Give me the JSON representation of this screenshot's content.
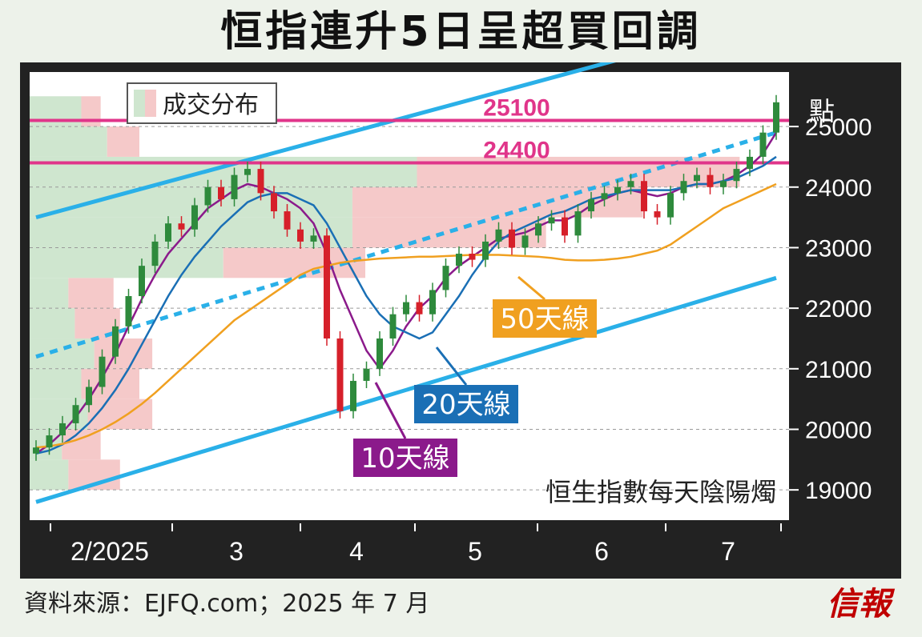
{
  "title": "恒指連升5日呈超買回調",
  "source": "資料來源：EJFQ.com；2025 年 7 月",
  "brand": "信報",
  "legend_label": "成交分布",
  "chart_caption": "恒生指數每天陰陽燭",
  "y_unit": "點",
  "colors": {
    "up": "#2e8a3c",
    "down": "#d6202a",
    "ma10": "#8b1a8b",
    "ma20": "#1a6fb5",
    "ma50": "#f0a020",
    "channel": "#2ab0e8",
    "resistance": "#e0358a",
    "vol_up": "#cfe6cf",
    "vol_down": "#f5c9c9"
  },
  "labels": {
    "ma10": "10天線",
    "ma20": "20天線",
    "ma50": "50天線",
    "r1": "25100",
    "r2": "24400"
  },
  "chart_data": {
    "type": "candlestick",
    "title": "恒指連升5日呈超買回調",
    "x_ticks": [
      "2/2025",
      "3",
      "4",
      "5",
      "6",
      "7"
    ],
    "y_ticks": [
      19000,
      20000,
      21000,
      22000,
      23000,
      24000,
      25000
    ],
    "ylim": [
      18500,
      25900
    ],
    "resistance_levels": [
      25100,
      24400
    ],
    "volume_profile": [
      {
        "price_low": 19000,
        "price_high": 19500,
        "up": 0.06,
        "down": 0.08
      },
      {
        "price_low": 19500,
        "price_high": 20000,
        "up": 0.05,
        "down": 0.06
      },
      {
        "price_low": 20000,
        "price_high": 20500,
        "up": 0.09,
        "down": 0.1
      },
      {
        "price_low": 20500,
        "price_high": 21000,
        "up": 0.08,
        "down": 0.09
      },
      {
        "price_low": 21000,
        "price_high": 21500,
        "up": 0.1,
        "down": 0.09
      },
      {
        "price_low": 21500,
        "price_high": 22000,
        "up": 0.07,
        "down": 0.07
      },
      {
        "price_low": 22000,
        "price_high": 22500,
        "up": 0.06,
        "down": 0.07
      },
      {
        "price_low": 22500,
        "price_high": 23000,
        "up": 0.3,
        "down": 0.22
      },
      {
        "price_low": 23000,
        "price_high": 23500,
        "up": 0.5,
        "down": 0.3
      },
      {
        "price_low": 23500,
        "price_high": 24000,
        "up": 0.5,
        "down": 0.45
      },
      {
        "price_low": 24000,
        "price_high": 24500,
        "up": 0.6,
        "down": 0.5
      },
      {
        "price_low": 24500,
        "price_high": 25000,
        "up": 0.12,
        "down": 0.05
      },
      {
        "price_low": 25000,
        "price_high": 25500,
        "up": 0.08,
        "down": 0.03
      }
    ],
    "series": [
      {
        "name": "恒生指數",
        "values": [
          19700,
          19900,
          20100,
          20400,
          20700,
          21200,
          21700,
          22200,
          22700,
          23100,
          23400,
          23300,
          23700,
          24000,
          23800,
          24200,
          24300,
          23900,
          23600,
          23300,
          23100,
          23200,
          21500,
          20300,
          20800,
          21000,
          21500,
          21900,
          22100,
          21900,
          22300,
          22700,
          22900,
          22800,
          23100,
          23300,
          23000,
          23200,
          23400,
          23500,
          23200,
          23600,
          23800,
          23900,
          24000,
          24100,
          23600,
          23500,
          23900,
          24100,
          24200,
          24000,
          24100,
          24300,
          24500,
          24900,
          25400
        ]
      },
      {
        "name": "10天線",
        "values": [
          19600,
          19750,
          19950,
          20200,
          20500,
          20850,
          21250,
          21700,
          22150,
          22550,
          22900,
          23150,
          23400,
          23650,
          23800,
          23950,
          24050,
          24000,
          23900,
          23800,
          23650,
          23400,
          22900,
          22300,
          21800,
          21300,
          21000,
          21300,
          21700,
          22000,
          22200,
          22500,
          22700,
          22850,
          23000,
          23150,
          23200,
          23250,
          23350,
          23450,
          23450,
          23550,
          23700,
          23800,
          23900,
          23950,
          23900,
          23850,
          23900,
          24000,
          24050,
          24050,
          24100,
          24200,
          24350,
          24550,
          24900
        ]
      },
      {
        "name": "20天線",
        "values": [
          19600,
          19650,
          19750,
          19900,
          20100,
          20350,
          20650,
          21000,
          21400,
          21800,
          22200,
          22550,
          22850,
          23100,
          23350,
          23550,
          23750,
          23850,
          23900,
          23900,
          23800,
          23700,
          23400,
          23000,
          22600,
          22200,
          21900,
          21700,
          21600,
          21500,
          21600,
          21900,
          22200,
          22550,
          22850,
          23100,
          23250,
          23350,
          23450,
          23550,
          23600,
          23700,
          23800,
          23850,
          23900,
          23950,
          23950,
          23950,
          23950,
          24000,
          24050,
          24050,
          24100,
          24150,
          24250,
          24350,
          24500
        ]
      },
      {
        "name": "50天線",
        "values": [
          19700,
          19720,
          19760,
          19820,
          19900,
          20000,
          20120,
          20260,
          20420,
          20600,
          20800,
          21000,
          21200,
          21400,
          21600,
          21800,
          21950,
          22100,
          22250,
          22400,
          22550,
          22650,
          22700,
          22750,
          22780,
          22800,
          22820,
          22830,
          22840,
          22850,
          22850,
          22860,
          22870,
          22880,
          22880,
          22880,
          22870,
          22860,
          22850,
          22830,
          22800,
          22790,
          22790,
          22800,
          22820,
          22850,
          22900,
          22950,
          23050,
          23200,
          23350,
          23500,
          23650,
          23750,
          23850,
          23950,
          24050
        ]
      }
    ],
    "channel_lines": [
      {
        "name": "upper",
        "from": [
          0,
          23500
        ],
        "to": [
          44,
          26100
        ]
      },
      {
        "name": "middle",
        "from": [
          0,
          21200
        ],
        "to": [
          56,
          24900
        ]
      },
      {
        "name": "lower",
        "from": [
          0,
          18800
        ],
        "to": [
          56,
          22500
        ]
      }
    ]
  }
}
